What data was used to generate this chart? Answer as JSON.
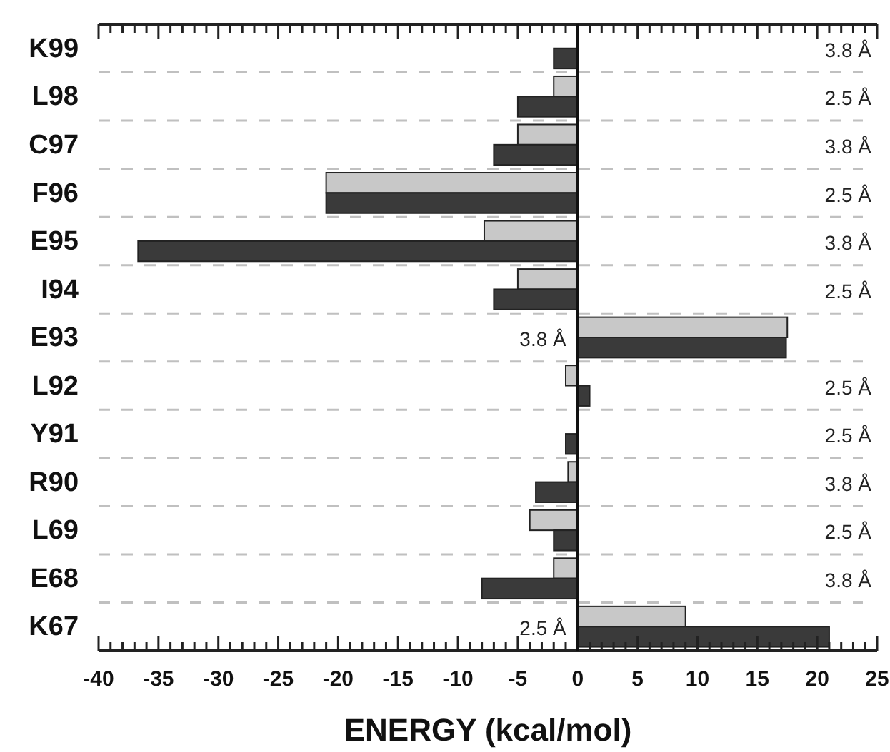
{
  "chart_data": {
    "type": "bar",
    "orientation": "horizontal",
    "xlabel": "ENERGY (kcal/mol)",
    "categories": [
      "K99",
      "L98",
      "C97",
      "F96",
      "E95",
      "I94",
      "E93",
      "L92",
      "Y91",
      "R90",
      "L69",
      "E68",
      "K67"
    ],
    "series": [
      {
        "color": "#c8c8c8",
        "values": [
          null,
          -2,
          -5,
          -21,
          -7.8,
          -5,
          17.5,
          -1,
          null,
          -0.8,
          -4,
          -2,
          9
        ]
      },
      {
        "color": "#3a3a3a",
        "values": [
          -2,
          -5,
          -7,
          -21,
          -36.7,
          -7,
          17.4,
          1,
          -1,
          -3.5,
          -2,
          -8,
          21
        ]
      }
    ],
    "xlim": [
      -40,
      25
    ],
    "xticks": [
      -40,
      {
        "value": -39,
        "label": null
      },
      {
        "value": -38,
        "label": null
      },
      {
        "value": -37,
        "label": null
      },
      {
        "value": -36,
        "label": null
      },
      -35,
      {
        "value": -34,
        "label": null
      },
      {
        "value": -33,
        "label": null
      },
      {
        "value": -32,
        "label": null
      },
      {
        "value": -31,
        "label": null
      },
      -30,
      {
        "value": -29,
        "label": null
      },
      {
        "value": -28,
        "label": null
      },
      {
        "value": -27,
        "label": null
      },
      {
        "value": -26,
        "label": null
      },
      -25,
      {
        "value": -24,
        "label": null
      },
      {
        "value": -23,
        "label": null
      },
      {
        "value": -22,
        "label": null
      },
      {
        "value": -21,
        "label": null
      },
      -20,
      {
        "value": -19,
        "label": null
      },
      {
        "value": -18,
        "label": null
      },
      {
        "value": -17,
        "label": null
      },
      {
        "value": -16,
        "label": null
      },
      -15,
      {
        "value": -14,
        "label": null
      },
      {
        "value": -13,
        "label": null
      },
      {
        "value": -12,
        "label": null
      },
      {
        "value": -11,
        "label": null
      },
      -10,
      {
        "value": -9,
        "label": null
      },
      {
        "value": -8,
        "label": null
      },
      {
        "value": -7,
        "label": null
      },
      {
        "value": -6,
        "label": null
      },
      -5,
      {
        "value": -4,
        "label": null
      },
      {
        "value": -3,
        "label": null
      },
      {
        "value": -2,
        "label": null
      },
      {
        "value": -1,
        "label": null
      },
      0,
      {
        "value": 1,
        "label": null
      },
      {
        "value": 2,
        "label": null
      },
      {
        "value": 3,
        "label": null
      },
      {
        "value": 4,
        "label": null
      },
      5,
      {
        "value": 6,
        "label": null
      },
      {
        "value": 7,
        "label": null
      },
      {
        "value": 8,
        "label": null
      },
      {
        "value": 9,
        "label": null
      },
      10,
      {
        "value": 11,
        "label": null
      },
      {
        "value": 12,
        "label": null
      },
      {
        "value": 13,
        "label": null
      },
      {
        "value": 14,
        "label": null
      },
      15,
      {
        "value": 16,
        "label": null
      },
      {
        "value": 17,
        "label": null
      },
      {
        "value": 18,
        "label": null
      },
      {
        "value": 19,
        "label": null
      },
      20,
      {
        "value": 21,
        "label": null
      },
      {
        "value": 22,
        "label": null
      },
      {
        "value": 23,
        "label": null
      },
      {
        "value": 24,
        "label": null
      },
      25
    ],
    "grid": "y",
    "annotations": [
      "3.8 Å",
      "2.5 Å",
      "3.8 Å",
      "2.5 Å",
      "3.8 Å",
      "2.5 Å",
      "3.8 Å",
      "2.5 Å",
      "2.5 Å",
      "3.8 Å",
      "2.5 Å",
      "3.8 Å",
      "2.5 Å"
    ]
  }
}
